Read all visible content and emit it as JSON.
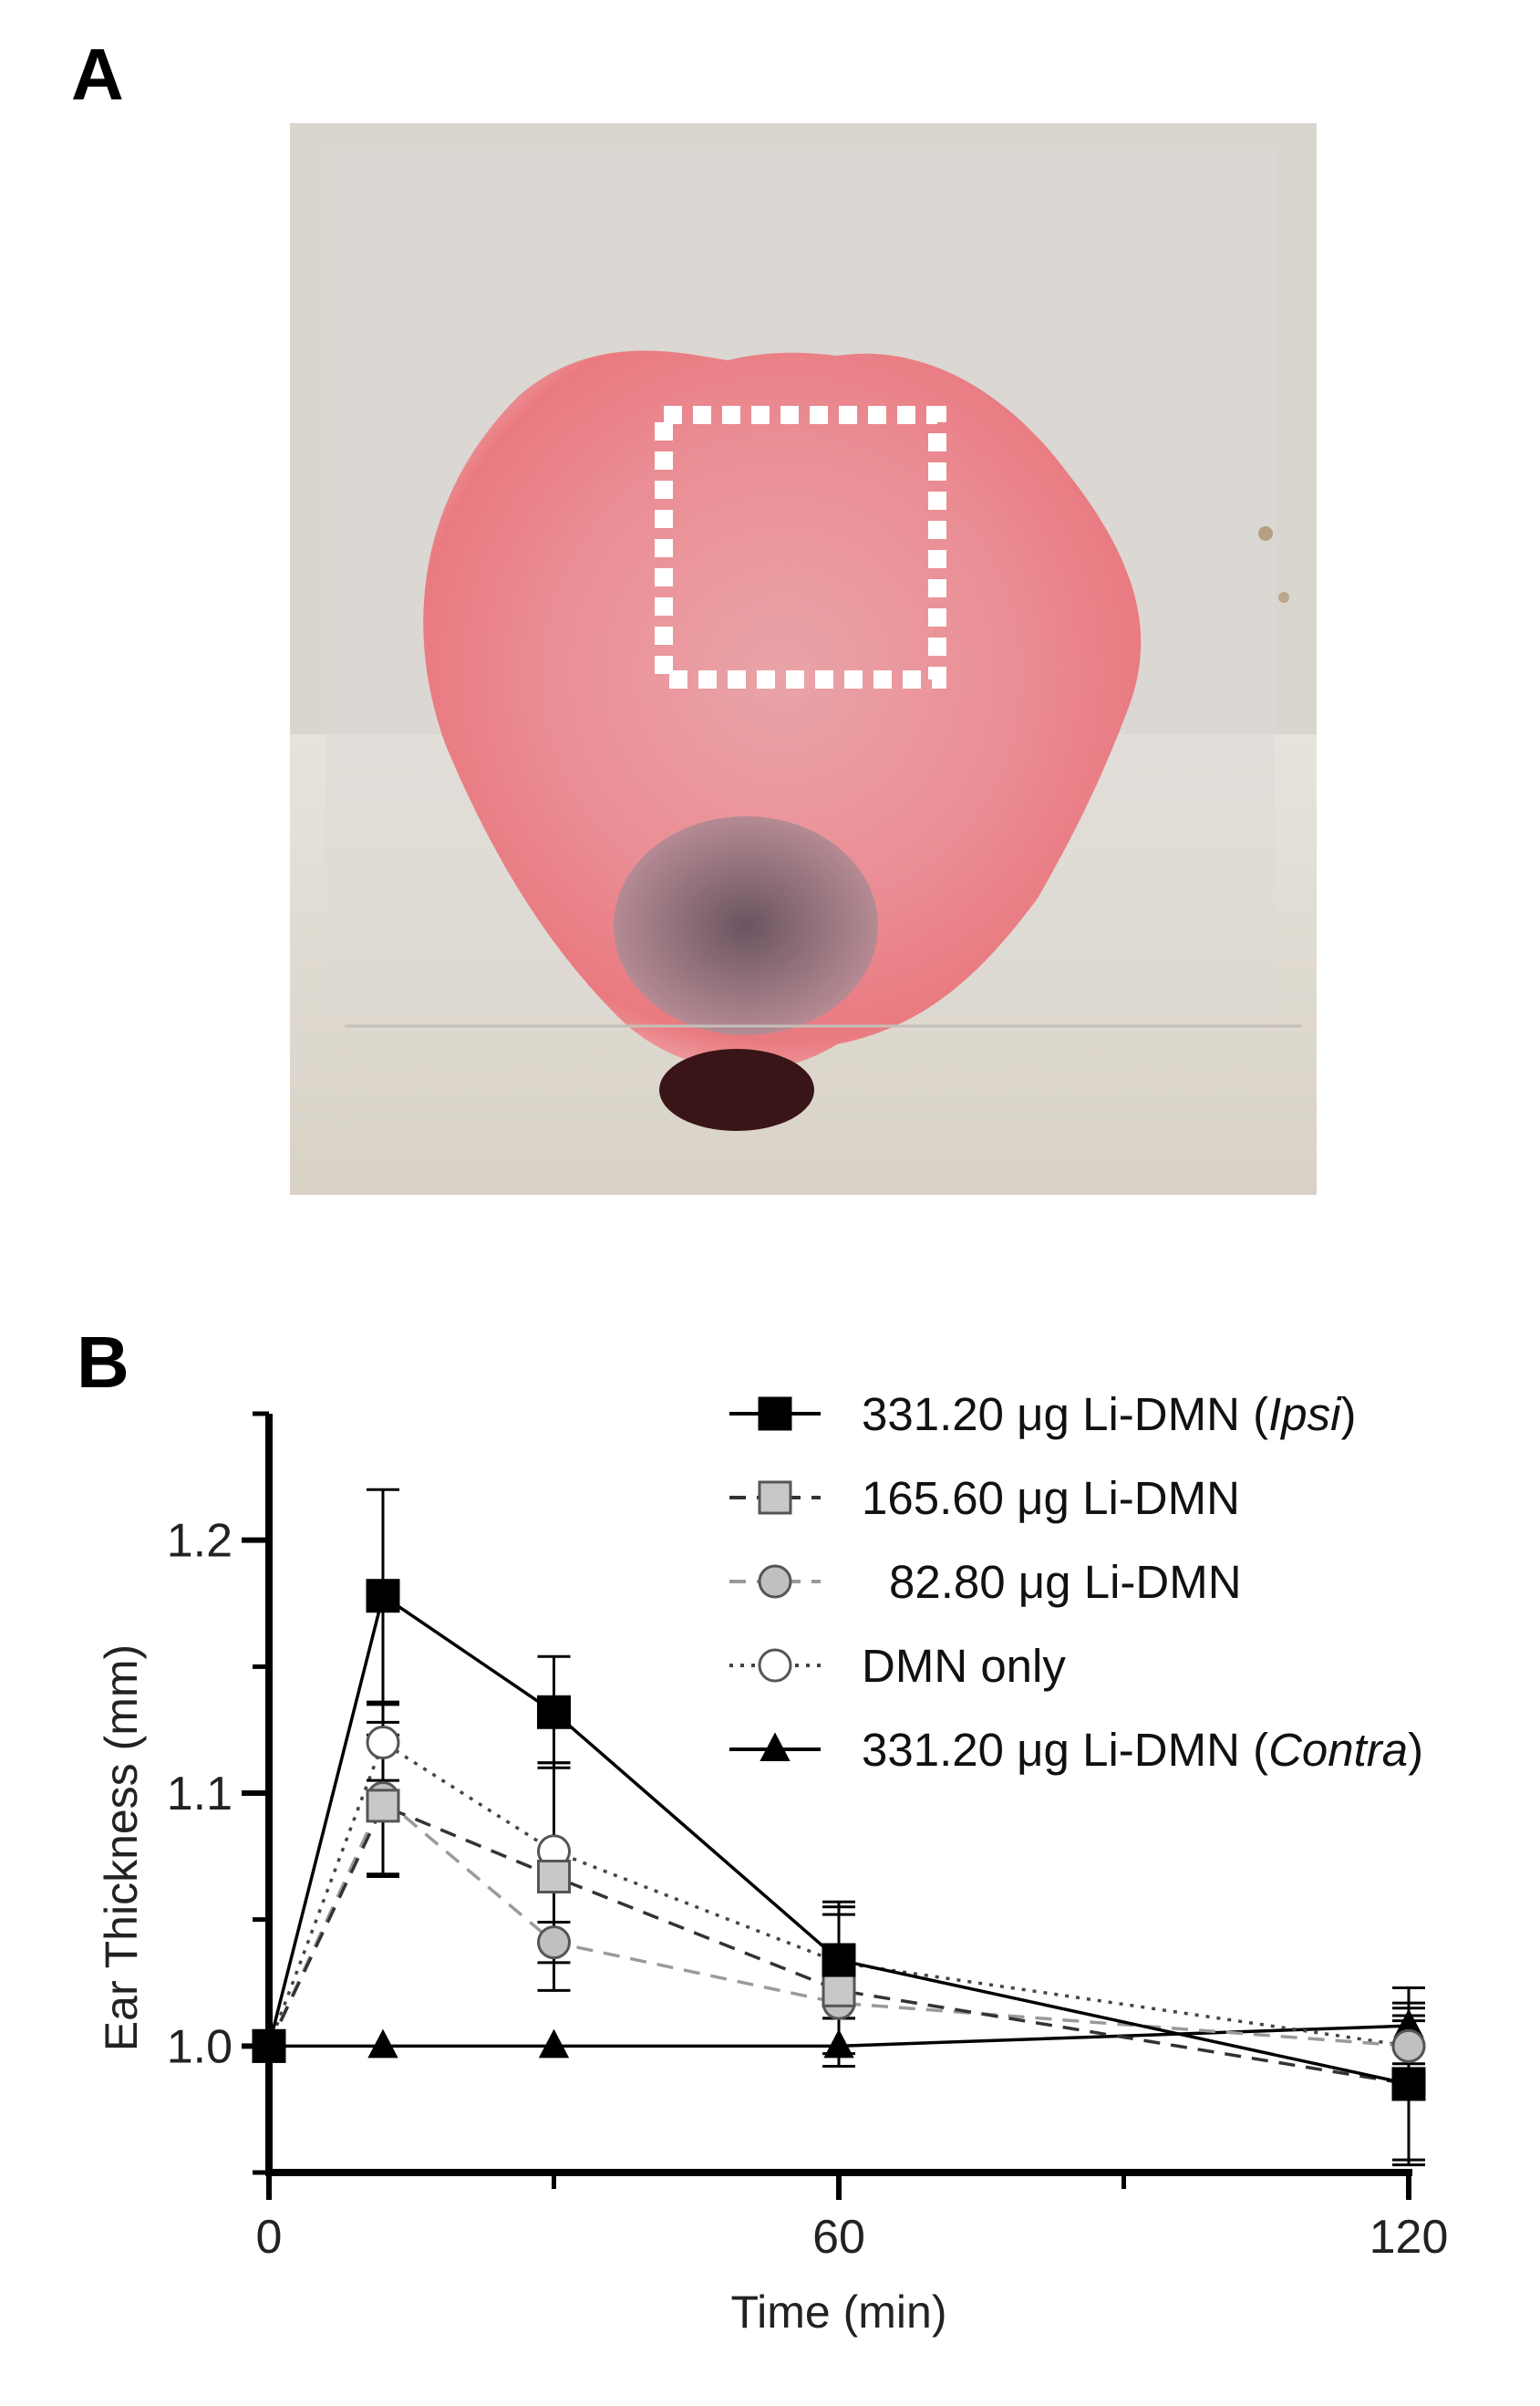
{
  "panels": {
    "a_label": "A",
    "b_label": "B"
  },
  "photo": {
    "description_icon": "mouse-ear-photo-icon"
  },
  "chart_data": {
    "type": "line",
    "xlabel": "Time (min)",
    "ylabel": "Ear Thickness (mm)",
    "xlim": [
      0,
      120
    ],
    "ylim": [
      0.95,
      1.25
    ],
    "x_ticks": [
      0,
      60,
      120
    ],
    "y_ticks": [
      1.0,
      1.1,
      1.2
    ],
    "x_tick_labels": [
      "0",
      "60",
      "120"
    ],
    "y_tick_labels": [
      "1.0",
      "1.1",
      "1.2"
    ],
    "grid": false,
    "legend": "top-right",
    "series": [
      {
        "name": "331.20 μg Li-DMN (",
        "name_italic": "Ipsi",
        "name_suffix": ")",
        "marker": "square",
        "fill": "#000000",
        "line_style": "solid",
        "line_color": "#000000",
        "x": [
          0,
          12,
          30,
          60,
          120
        ],
        "y": [
          1.0,
          1.178,
          1.132,
          1.034,
          0.985
        ],
        "err": [
          0,
          0.042,
          0.022,
          0.023,
          0.03
        ]
      },
      {
        "name": "165.60 μg Li-DMN",
        "marker": "square",
        "fill": "#c8c8c8",
        "line_style": "dashed",
        "line_color": "#333333",
        "x": [
          0,
          12,
          30,
          60,
          120
        ],
        "y": [
          1.0,
          1.095,
          1.067,
          1.022,
          0.985
        ],
        "err": [
          0,
          0.028,
          0.045,
          0.03,
          0.032
        ]
      },
      {
        "name": "82.80 μg Li-DMN",
        "marker": "circle",
        "fill": "#c0c0c0",
        "line_style": "dashed",
        "line_color": "#9a9a9a",
        "x": [
          0,
          12,
          30,
          60,
          120
        ],
        "y": [
          1.0,
          1.098,
          1.041,
          1.017,
          1.0
        ],
        "err": [
          0,
          0.03,
          0.008,
          0.02,
          0.01
        ]
      },
      {
        "name": "DMN only",
        "marker": "circle",
        "fill": "#ffffff",
        "line_style": "dotted",
        "line_color": "#444444",
        "x": [
          0,
          12,
          30,
          60,
          120
        ],
        "y": [
          1.0,
          1.12,
          1.077,
          1.033,
          1.0
        ],
        "err": [
          0,
          0.015,
          0.035,
          0.022,
          0.012
        ]
      },
      {
        "name": "331.20 μg Li-DMN (",
        "name_italic": "Contra",
        "name_suffix": ")",
        "marker": "triangle",
        "fill": "#000000",
        "line_style": "solid",
        "line_color": "#000000",
        "x": [
          0,
          12,
          30,
          60,
          120
        ],
        "y": [
          1.0,
          1.0,
          1.0,
          1.0,
          1.008
        ],
        "err": [
          0,
          0,
          0,
          0,
          0.015
        ]
      }
    ]
  }
}
